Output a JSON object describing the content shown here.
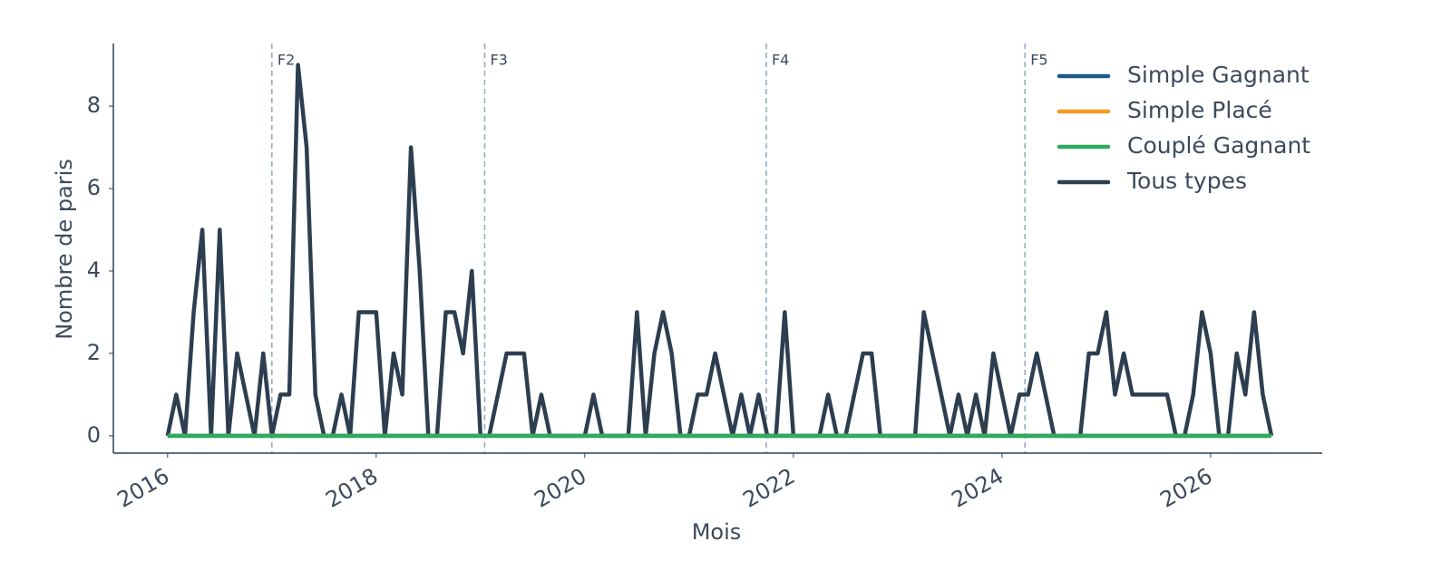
{
  "chart_data": {
    "type": "line",
    "x_label": "Mois",
    "y_label": "Nombre de paris",
    "x": [
      2016,
      2016.083,
      2016.167,
      2016.25,
      2016.333,
      2016.417,
      2016.5,
      2016.583,
      2016.667,
      2016.75,
      2016.833,
      2016.917,
      2017,
      2017.083,
      2017.167,
      2017.25,
      2017.333,
      2017.417,
      2017.5,
      2017.583,
      2017.667,
      2017.75,
      2017.833,
      2017.917,
      2018,
      2018.083,
      2018.167,
      2018.25,
      2018.333,
      2018.417,
      2018.5,
      2018.583,
      2018.667,
      2018.75,
      2018.833,
      2018.917,
      2019,
      2019.083,
      2019.167,
      2019.25,
      2019.333,
      2019.417,
      2019.5,
      2019.583,
      2019.667,
      2019.75,
      2019.833,
      2019.917,
      2020,
      2020.083,
      2020.167,
      2020.25,
      2020.333,
      2020.417,
      2020.5,
      2020.583,
      2020.667,
      2020.75,
      2020.833,
      2020.917,
      2021,
      2021.083,
      2021.167,
      2021.25,
      2021.333,
      2021.417,
      2021.5,
      2021.583,
      2021.667,
      2021.75,
      2021.833,
      2021.917,
      2022,
      2022.083,
      2022.167,
      2022.25,
      2022.333,
      2022.417,
      2022.5,
      2022.583,
      2022.667,
      2022.75,
      2022.833,
      2022.917,
      2023,
      2023.083,
      2023.167,
      2023.25,
      2023.333,
      2023.417,
      2023.5,
      2023.583,
      2023.667,
      2023.75,
      2023.833,
      2023.917,
      2024,
      2024.083,
      2024.167,
      2024.25,
      2024.333,
      2024.417,
      2024.5,
      2024.583,
      2024.667,
      2024.75,
      2024.833,
      2024.917,
      2025,
      2025.083,
      2025.167,
      2025.25,
      2025.333,
      2025.417,
      2025.5,
      2025.583,
      2025.667,
      2025.75,
      2025.833,
      2025.917,
      2026,
      2026.083,
      2026.167,
      2026.25,
      2026.333,
      2026.417,
      2026.5,
      2026.583
    ],
    "series": [
      {
        "name": "Simple Gagnant",
        "color": "#1a5a8a",
        "values": [
          0,
          0,
          0,
          0,
          0,
          0,
          0,
          0,
          0,
          0,
          0,
          0,
          0,
          0,
          0,
          0,
          0,
          0,
          0,
          0,
          0,
          0,
          0,
          0,
          0,
          0,
          0,
          0,
          0,
          0,
          0,
          0,
          0,
          0,
          0,
          0,
          0,
          0,
          0,
          0,
          0,
          0,
          0,
          0,
          0,
          0,
          0,
          0,
          0,
          0,
          0,
          0,
          0,
          0,
          0,
          0,
          0,
          0,
          0,
          0,
          0,
          0,
          0,
          0,
          0,
          0,
          0,
          0,
          0,
          0,
          0,
          0,
          0,
          0,
          0,
          0,
          0,
          0,
          0,
          0,
          0,
          0,
          0,
          0,
          0,
          0,
          0,
          0,
          0,
          0,
          0,
          0,
          0,
          0,
          0,
          0,
          0,
          0,
          0,
          0,
          0,
          0,
          0,
          0,
          0,
          0,
          0,
          0,
          0,
          0,
          0,
          0,
          0,
          0,
          0,
          0,
          0,
          0,
          0,
          0,
          0,
          0,
          0,
          0,
          0,
          0,
          0,
          0
        ]
      },
      {
        "name": "Simple Placé",
        "color": "#f39c1f",
        "values": [
          0,
          0,
          0,
          0,
          0,
          0,
          0,
          0,
          0,
          0,
          0,
          0,
          0,
          0,
          0,
          0,
          0,
          0,
          0,
          0,
          0,
          0,
          0,
          0,
          0,
          0,
          0,
          0,
          0,
          0,
          0,
          0,
          0,
          0,
          0,
          0,
          0,
          0,
          0,
          0,
          0,
          0,
          0,
          0,
          0,
          0,
          0,
          0,
          0,
          0,
          0,
          0,
          0,
          0,
          0,
          0,
          0,
          0,
          0,
          0,
          0,
          0,
          0,
          0,
          0,
          0,
          0,
          0,
          0,
          0,
          0,
          0,
          0,
          0,
          0,
          0,
          0,
          0,
          0,
          0,
          0,
          0,
          0,
          0,
          0,
          0,
          0,
          0,
          0,
          0,
          0,
          0,
          0,
          0,
          0,
          0,
          0,
          0,
          0,
          0,
          0,
          0,
          0,
          0,
          0,
          0,
          0,
          0,
          0,
          0,
          0,
          0,
          0,
          0,
          0,
          0,
          0,
          0,
          0,
          0,
          0,
          0,
          0,
          0,
          0,
          0,
          0,
          0
        ]
      },
      {
        "name": "Couplé Gagnant",
        "color": "#2eaa62",
        "values": [
          0,
          0,
          0,
          0,
          0,
          0,
          0,
          0,
          0,
          0,
          0,
          0,
          0,
          0,
          0,
          0,
          0,
          0,
          0,
          0,
          0,
          0,
          0,
          0,
          0,
          0,
          0,
          0,
          0,
          0,
          0,
          0,
          0,
          0,
          0,
          0,
          0,
          0,
          0,
          0,
          0,
          0,
          0,
          0,
          0,
          0,
          0,
          0,
          0,
          0,
          0,
          0,
          0,
          0,
          0,
          0,
          0,
          0,
          0,
          0,
          0,
          0,
          0,
          0,
          0,
          0,
          0,
          0,
          0,
          0,
          0,
          0,
          0,
          0,
          0,
          0,
          0,
          0,
          0,
          0,
          0,
          0,
          0,
          0,
          0,
          0,
          0,
          0,
          0,
          0,
          0,
          0,
          0,
          0,
          0,
          0,
          0,
          0,
          0,
          0,
          0,
          0,
          0,
          0,
          0,
          0,
          0,
          0,
          0,
          0,
          0,
          0,
          0,
          0,
          0,
          0,
          0,
          0,
          0,
          0,
          0,
          0,
          0,
          0,
          0,
          0,
          0,
          0
        ]
      },
      {
        "name": "Tous types",
        "color": "#2c3e50",
        "values": [
          0,
          1,
          0,
          3,
          5,
          0,
          5,
          0,
          2,
          1,
          0,
          2,
          0,
          1,
          1,
          9,
          7,
          1,
          0,
          0,
          1,
          0,
          3,
          3,
          3,
          0,
          2,
          1,
          7,
          4,
          0,
          0,
          3,
          3,
          2,
          4,
          0,
          0,
          1,
          2,
          2,
          2,
          0,
          1,
          0,
          0,
          0,
          0,
          0,
          1,
          0,
          0,
          0,
          0,
          3,
          0,
          2,
          3,
          2,
          0,
          0,
          1,
          1,
          2,
          1,
          0,
          1,
          0,
          1,
          0,
          0,
          3,
          0,
          0,
          0,
          0,
          1,
          0,
          0,
          1,
          2,
          2,
          0,
          0,
          0,
          0,
          0,
          3,
          2,
          1,
          0,
          1,
          0,
          1,
          0,
          2,
          1,
          0,
          1,
          1,
          2,
          1,
          0,
          0,
          0,
          0,
          2,
          2,
          3,
          1,
          2,
          1,
          1,
          1,
          1,
          1,
          0,
          0,
          1,
          3,
          2,
          0,
          0,
          2,
          1,
          3,
          1,
          0
        ]
      }
    ],
    "annotations": [
      {
        "x": 2017,
        "label": "F2"
      },
      {
        "x": 2019.04,
        "label": "F3"
      },
      {
        "x": 2021.74,
        "label": "F4"
      },
      {
        "x": 2024.22,
        "label": "F5"
      }
    ],
    "xlim": [
      2015.48,
      2027.07
    ],
    "xticks": [
      2016,
      2018,
      2020,
      2022,
      2024,
      2026
    ],
    "ylim": [
      -0.42,
      9.52
    ],
    "yticks": [
      0,
      2,
      4,
      6,
      8
    ],
    "legend": "upper right"
  }
}
